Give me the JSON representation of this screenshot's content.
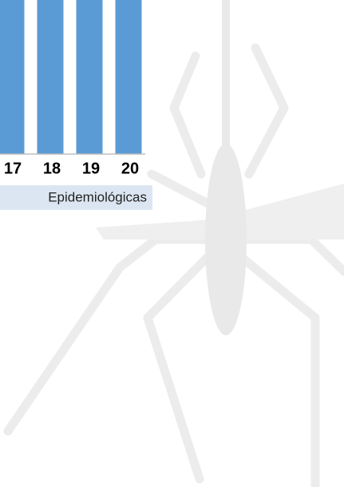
{
  "chart_data": {
    "type": "bar",
    "categories": [
      "17",
      "18",
      "19",
      "20"
    ],
    "x_label": "Epidemiológicas",
    "color": "#5b9bd5"
  }
}
